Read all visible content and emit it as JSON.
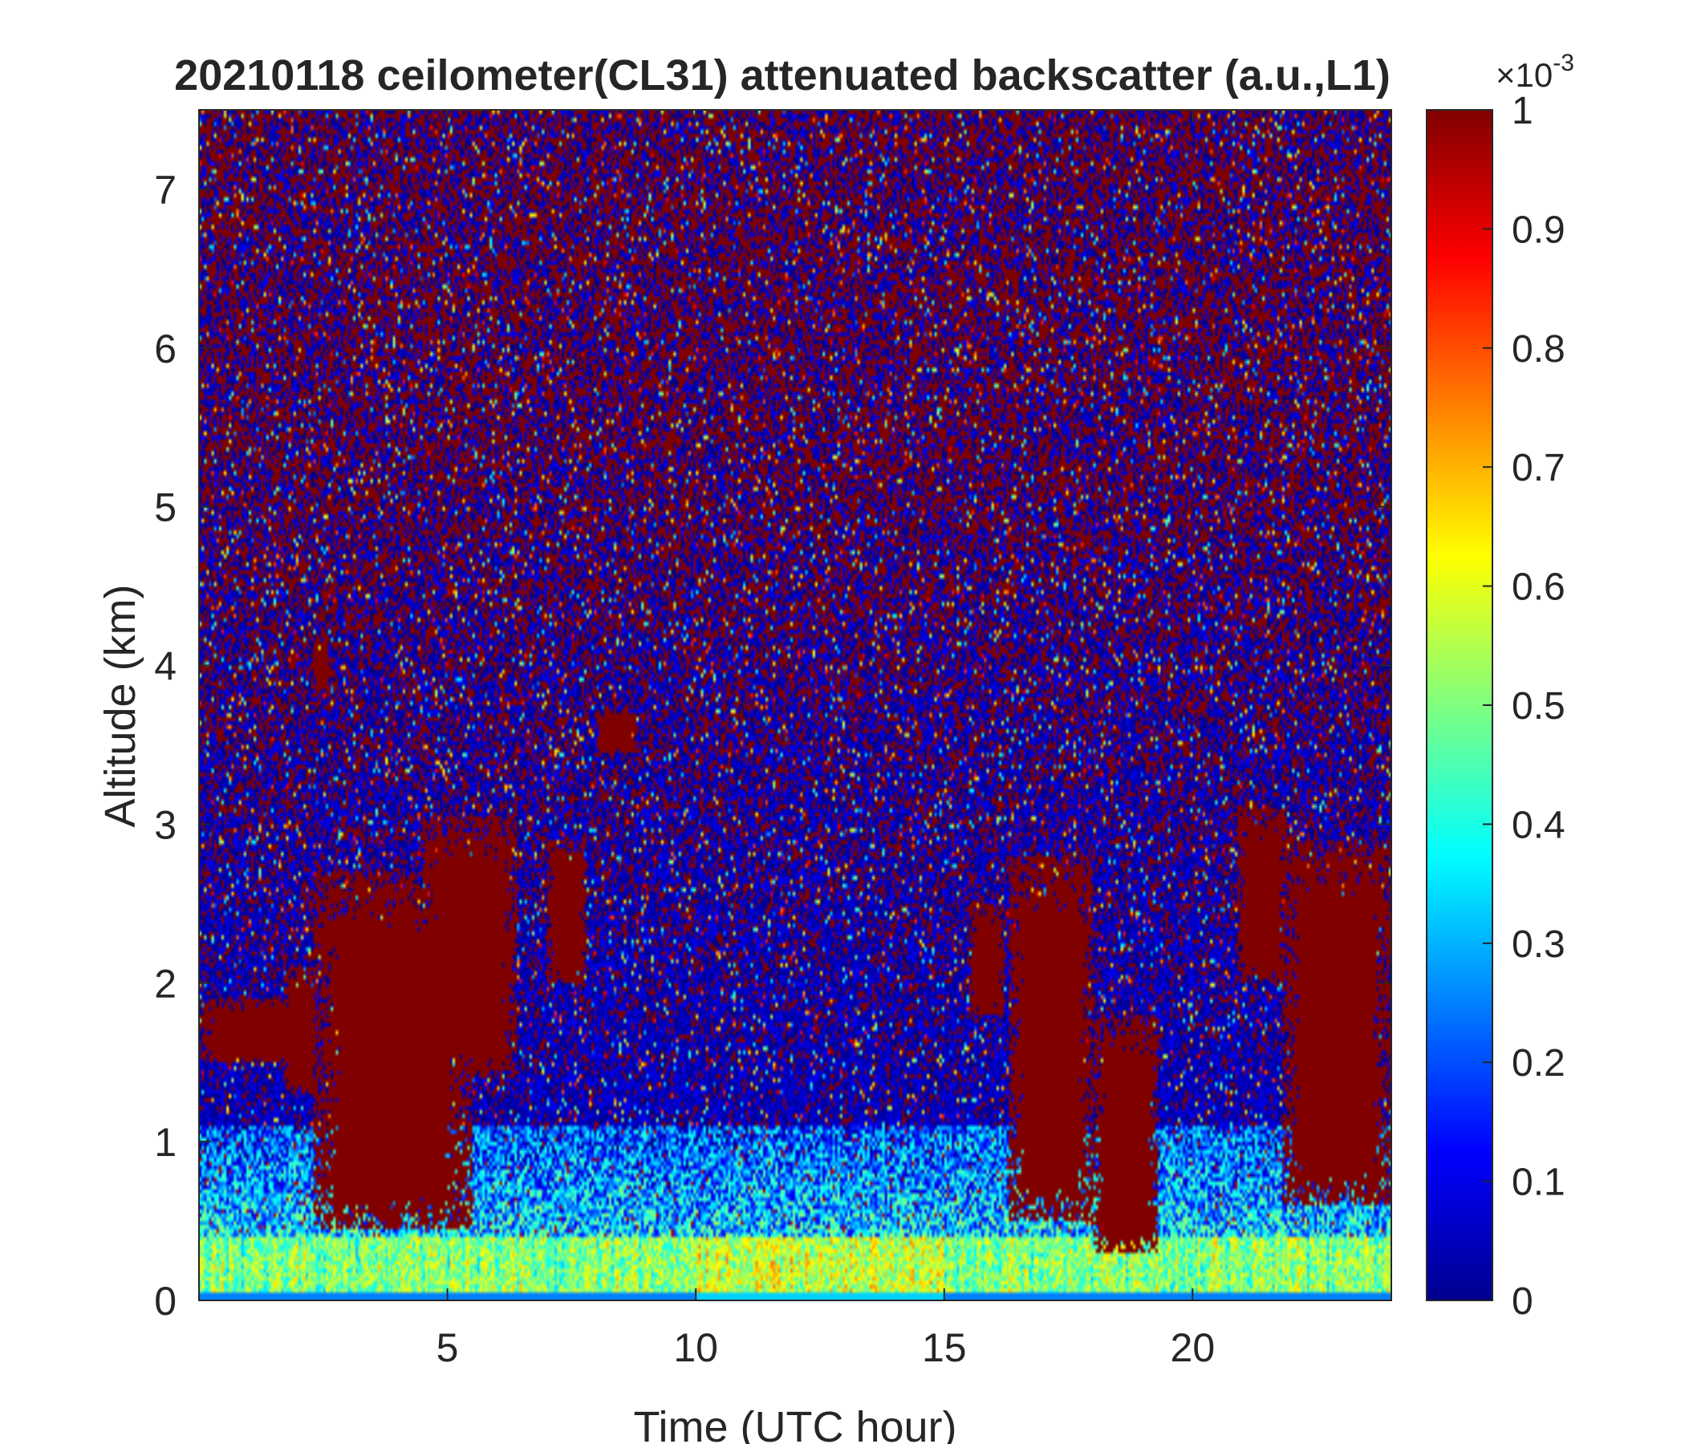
{
  "chart_data": {
    "type": "heatmap",
    "title": "20210118 ceilometer(CL31) attenuated backscatter (a.u.,L1)",
    "xlabel": "Time (UTC hour)",
    "ylabel": "Altitude (km)",
    "xlim": [
      0,
      24
    ],
    "ylim": [
      0,
      7.5
    ],
    "xticks": [
      5,
      10,
      15,
      20
    ],
    "yticks": [
      0,
      1,
      2,
      3,
      4,
      5,
      6,
      7
    ],
    "colormap": "jet",
    "colorbar": {
      "clim": [
        0,
        1
      ],
      "ticks": [
        0,
        0.1,
        0.2,
        0.3,
        0.4,
        0.5,
        0.6,
        0.7,
        0.8,
        0.9,
        1
      ],
      "exponent_label": "×10",
      "exponent": "-3",
      "placement": "right"
    },
    "features": {
      "near_surface_layer": {
        "x_range": [
          0,
          24
        ],
        "y_range": [
          0,
          0.4
        ],
        "level": 0.5
      },
      "boundary_layer": {
        "x_range": [
          0,
          24
        ],
        "y_range": [
          0.4,
          1.1
        ],
        "level": 0.35
      },
      "cloud_regions": [
        {
          "x": [
            0,
            2.2
          ],
          "y": [
            1.5,
            1.9
          ],
          "level": 1.0
        },
        {
          "x": [
            1.7,
            2.4
          ],
          "y": [
            1.3,
            2.1
          ],
          "level": 1.0
        },
        {
          "x": [
            2.3,
            5.5
          ],
          "y": [
            0.45,
            2.7
          ],
          "level": 1.0
        },
        {
          "x": [
            4.5,
            6.4
          ],
          "y": [
            1.4,
            3.05
          ],
          "level": 1.0
        },
        {
          "x": [
            7.0,
            7.8
          ],
          "y": [
            2.0,
            2.9
          ],
          "level": 1.0
        },
        {
          "x": [
            8.0,
            8.8
          ],
          "y": [
            3.45,
            3.7
          ],
          "level": 1.0
        },
        {
          "x": [
            2.3,
            2.6
          ],
          "y": [
            3.85,
            4.15
          ],
          "level": 1.0
        },
        {
          "x": [
            15.5,
            16.2
          ],
          "y": [
            1.8,
            2.5
          ],
          "level": 1.0
        },
        {
          "x": [
            16.3,
            18.0
          ],
          "y": [
            0.5,
            2.8
          ],
          "level": 1.0
        },
        {
          "x": [
            18.0,
            19.3
          ],
          "y": [
            0.3,
            1.8
          ],
          "level": 1.0
        },
        {
          "x": [
            20.9,
            21.9
          ],
          "y": [
            2.0,
            3.1
          ],
          "level": 1.0
        },
        {
          "x": [
            21.8,
            24.0
          ],
          "y": [
            0.6,
            2.9
          ],
          "level": 1.0
        }
      ],
      "upper_noise": {
        "y_range": [
          1.1,
          7.5
        ],
        "pattern": "mixed dark blue and dark red speckle"
      }
    },
    "grid": false
  }
}
